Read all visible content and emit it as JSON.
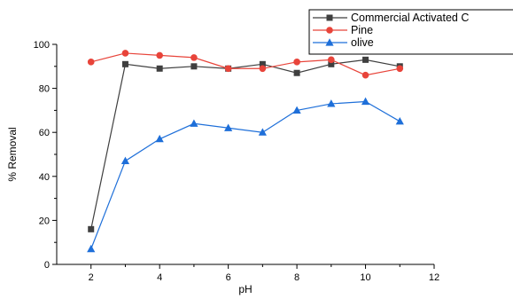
{
  "chart_data": {
    "type": "line",
    "title": "",
    "xlabel": "pH",
    "ylabel": "% Removal",
    "xlim": [
      1,
      12
    ],
    "ylim": [
      0,
      100
    ],
    "xticks": [
      2,
      4,
      6,
      8,
      10,
      12
    ],
    "yticks": [
      0,
      20,
      40,
      60,
      80,
      100
    ],
    "grid": false,
    "legend_position": "top-right",
    "x": [
      2,
      3,
      4,
      5,
      6,
      7,
      8,
      9,
      10,
      11
    ],
    "series": [
      {
        "name": "Commercial Activated C",
        "color": "#3f3f3f",
        "marker": "square",
        "values": [
          16,
          91,
          89,
          90,
          89,
          91,
          87,
          91,
          93,
          90
        ]
      },
      {
        "name": "Pine",
        "color": "#e8443a",
        "marker": "circle",
        "values": [
          92,
          96,
          95,
          94,
          89,
          89,
          92,
          93,
          86,
          89
        ]
      },
      {
        "name": "olive",
        "color": "#1e6fd9",
        "marker": "triangle",
        "values": [
          7,
          47,
          57,
          64,
          62,
          60,
          70,
          73,
          74,
          65
        ]
      }
    ]
  }
}
